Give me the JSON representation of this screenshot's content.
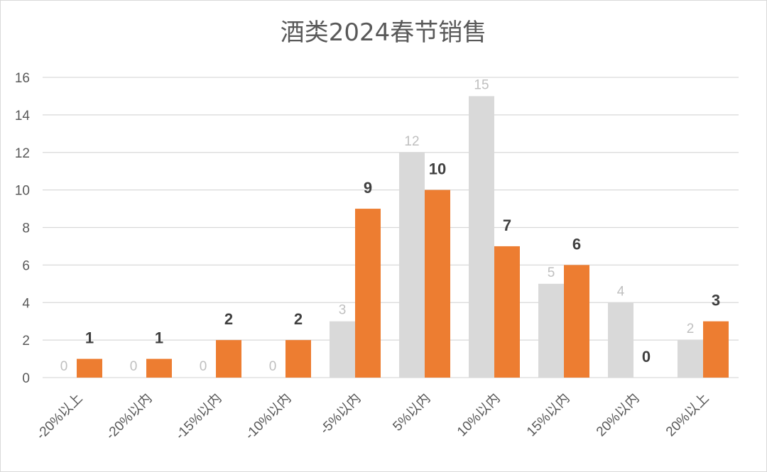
{
  "chart_data": {
    "type": "bar",
    "title": "酒类2024春节销售",
    "categories": [
      "-20%以上",
      "-20%以内",
      "-15%以内",
      "-10%以内",
      "-5%以内",
      "5%以内",
      "10%以内",
      "15%以内",
      "20%以内",
      "20%以上"
    ],
    "series": [
      {
        "values": [
          0,
          0,
          0,
          0,
          3,
          12,
          15,
          5,
          4,
          2
        ],
        "color": "#d9d9d9"
      },
      {
        "values": [
          1,
          1,
          2,
          2,
          9,
          10,
          7,
          6,
          0,
          3
        ],
        "color": "#ed7d31"
      }
    ],
    "ylim": [
      0,
      16
    ],
    "yticks": [
      0,
      2,
      4,
      6,
      8,
      10,
      12,
      14,
      16
    ],
    "grid": true,
    "legend": "none"
  }
}
